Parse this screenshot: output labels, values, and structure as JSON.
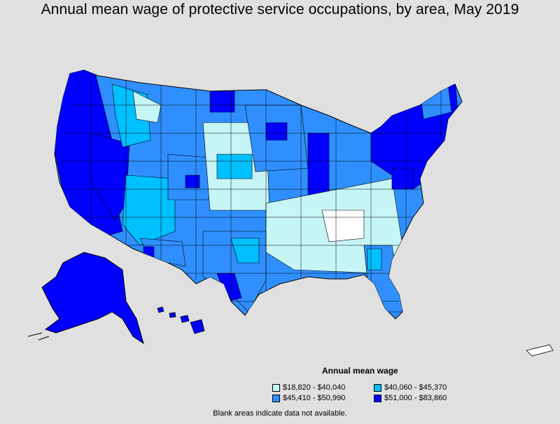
{
  "title": "Annual mean wage of protective service occupations, by area, May 2019",
  "legend": {
    "title": "Annual mean wage",
    "items": [
      {
        "label": "$18,820 - $40,040",
        "color": "#c6f5f5"
      },
      {
        "label": "$40,060 - $45,370",
        "color": "#00c0ff"
      },
      {
        "label": "$45,410 - $50,990",
        "color": "#2f8fff"
      },
      {
        "label": "$51,000 - $83,860",
        "color": "#0000ff"
      }
    ]
  },
  "footnote": "Blank areas indicate data not available."
}
